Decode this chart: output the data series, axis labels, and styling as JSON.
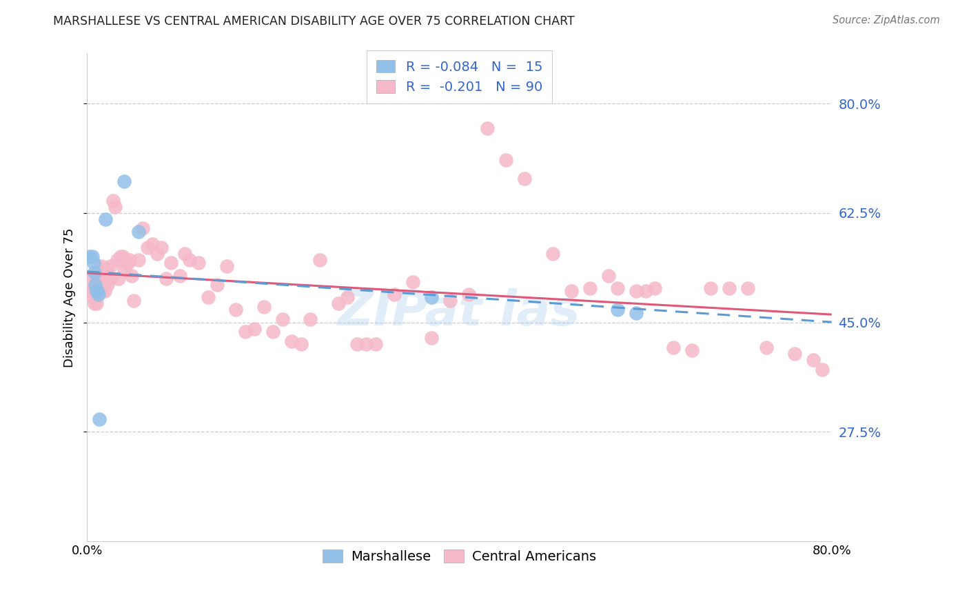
{
  "title": "MARSHALLESE VS CENTRAL AMERICAN DISABILITY AGE OVER 75 CORRELATION CHART",
  "source": "Source: ZipAtlas.com",
  "ylabel": "Disability Age Over 75",
  "ytick_values": [
    0.8,
    0.625,
    0.45,
    0.275
  ],
  "xmin": 0.0,
  "xmax": 0.8,
  "ymin": 0.1,
  "ymax": 0.88,
  "blue_color": "#92c0e8",
  "pink_color": "#f5b8c8",
  "line_blue_color": "#5b9bd5",
  "line_pink_color": "#e05878",
  "legend_line1_r": "-0.084",
  "legend_line1_n": "15",
  "legend_line2_r": "-0.201",
  "legend_line2_n": "90",
  "marshallese_x": [
    0.003,
    0.006,
    0.007,
    0.008,
    0.009,
    0.01,
    0.011,
    0.012,
    0.013,
    0.02,
    0.04,
    0.055,
    0.37,
    0.57,
    0.59
  ],
  "marshallese_y": [
    0.555,
    0.555,
    0.545,
    0.53,
    0.51,
    0.5,
    0.5,
    0.495,
    0.295,
    0.615,
    0.675,
    0.595,
    0.49,
    0.47,
    0.465
  ],
  "central_x": [
    0.004,
    0.005,
    0.006,
    0.007,
    0.008,
    0.009,
    0.009,
    0.01,
    0.011,
    0.012,
    0.013,
    0.014,
    0.015,
    0.016,
    0.017,
    0.018,
    0.019,
    0.02,
    0.021,
    0.022,
    0.023,
    0.025,
    0.026,
    0.028,
    0.03,
    0.032,
    0.034,
    0.036,
    0.038,
    0.04,
    0.042,
    0.044,
    0.046,
    0.048,
    0.05,
    0.055,
    0.06,
    0.065,
    0.07,
    0.075,
    0.08,
    0.085,
    0.09,
    0.1,
    0.105,
    0.11,
    0.12,
    0.13,
    0.14,
    0.15,
    0.16,
    0.17,
    0.18,
    0.19,
    0.2,
    0.21,
    0.22,
    0.23,
    0.24,
    0.25,
    0.27,
    0.28,
    0.29,
    0.3,
    0.31,
    0.33,
    0.35,
    0.37,
    0.39,
    0.41,
    0.43,
    0.45,
    0.47,
    0.5,
    0.52,
    0.54,
    0.56,
    0.57,
    0.59,
    0.6,
    0.61,
    0.63,
    0.65,
    0.67,
    0.69,
    0.71,
    0.73,
    0.76,
    0.78,
    0.79
  ],
  "central_y": [
    0.5,
    0.52,
    0.49,
    0.505,
    0.48,
    0.52,
    0.505,
    0.48,
    0.51,
    0.505,
    0.5,
    0.535,
    0.54,
    0.5,
    0.52,
    0.51,
    0.5,
    0.525,
    0.535,
    0.51,
    0.52,
    0.54,
    0.52,
    0.645,
    0.635,
    0.55,
    0.52,
    0.555,
    0.555,
    0.535,
    0.545,
    0.545,
    0.55,
    0.525,
    0.485,
    0.55,
    0.6,
    0.57,
    0.575,
    0.56,
    0.57,
    0.52,
    0.545,
    0.525,
    0.56,
    0.55,
    0.545,
    0.49,
    0.51,
    0.54,
    0.47,
    0.435,
    0.44,
    0.475,
    0.435,
    0.455,
    0.42,
    0.415,
    0.455,
    0.55,
    0.48,
    0.49,
    0.415,
    0.415,
    0.415,
    0.495,
    0.515,
    0.425,
    0.485,
    0.495,
    0.76,
    0.71,
    0.68,
    0.56,
    0.5,
    0.505,
    0.525,
    0.505,
    0.5,
    0.5,
    0.505,
    0.41,
    0.405,
    0.505,
    0.505,
    0.505,
    0.41,
    0.4,
    0.39,
    0.375
  ]
}
